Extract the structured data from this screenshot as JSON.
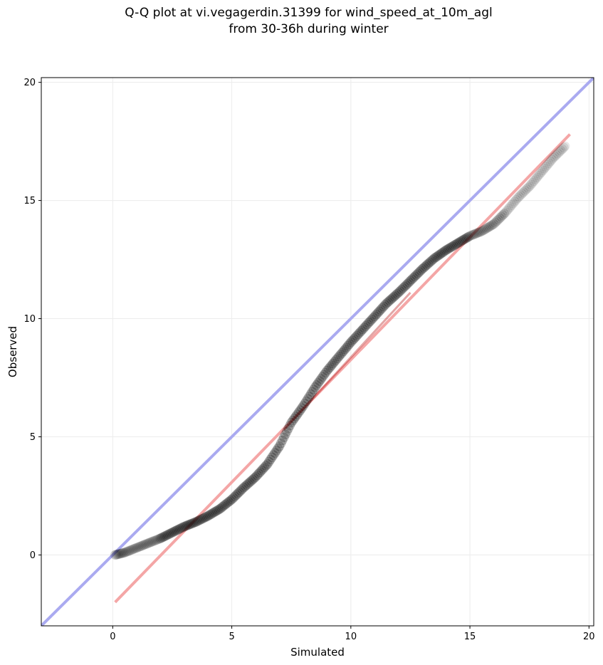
{
  "chart_data": {
    "type": "scatter",
    "title_lines": [
      "Q-Q plot at vi.vegagerdin.31399 for wind_speed_at_10m_agl",
      "from 30-36h during winter"
    ],
    "xlabel": "Simulated",
    "ylabel": "Observed",
    "xlim": [
      -3,
      20.2
    ],
    "ylim": [
      -3,
      20.2
    ],
    "x_ticks": [
      0,
      5,
      10,
      15,
      20
    ],
    "y_ticks": [
      0,
      5,
      10,
      15,
      20
    ],
    "grid": true,
    "identity_line": {
      "from": [
        -3,
        -3
      ],
      "to": [
        20.2,
        20.2
      ],
      "color": "#aaaaf0"
    },
    "fit_line": {
      "from": [
        0.1,
        -2.0
      ],
      "to": [
        19.2,
        17.8
      ],
      "color": "#f4a6a6"
    },
    "point_color": "#000000",
    "qq_quantiles": {
      "x": [
        0.1,
        0.5,
        1.0,
        1.5,
        2.0,
        2.5,
        3.0,
        3.5,
        4.0,
        4.5,
        5.0,
        5.5,
        6.0,
        6.5,
        7.0,
        7.5,
        8.0,
        8.5,
        9.0,
        9.5,
        10.0,
        10.5,
        11.0,
        11.5,
        12.0,
        12.5,
        13.0,
        13.5,
        14.0,
        14.5,
        15.0,
        15.5,
        16.0,
        16.5,
        17.0,
        17.5,
        18.0,
        18.5,
        19.0
      ],
      "y": [
        0.0,
        0.1,
        0.3,
        0.5,
        0.7,
        0.95,
        1.2,
        1.4,
        1.65,
        1.95,
        2.35,
        2.85,
        3.3,
        3.85,
        4.6,
        5.6,
        6.3,
        7.1,
        7.8,
        8.4,
        9.0,
        9.55,
        10.1,
        10.65,
        11.1,
        11.6,
        12.1,
        12.55,
        12.9,
        13.2,
        13.5,
        13.7,
        14.0,
        14.5,
        15.1,
        15.6,
        16.2,
        16.8,
        17.3
      ]
    }
  }
}
